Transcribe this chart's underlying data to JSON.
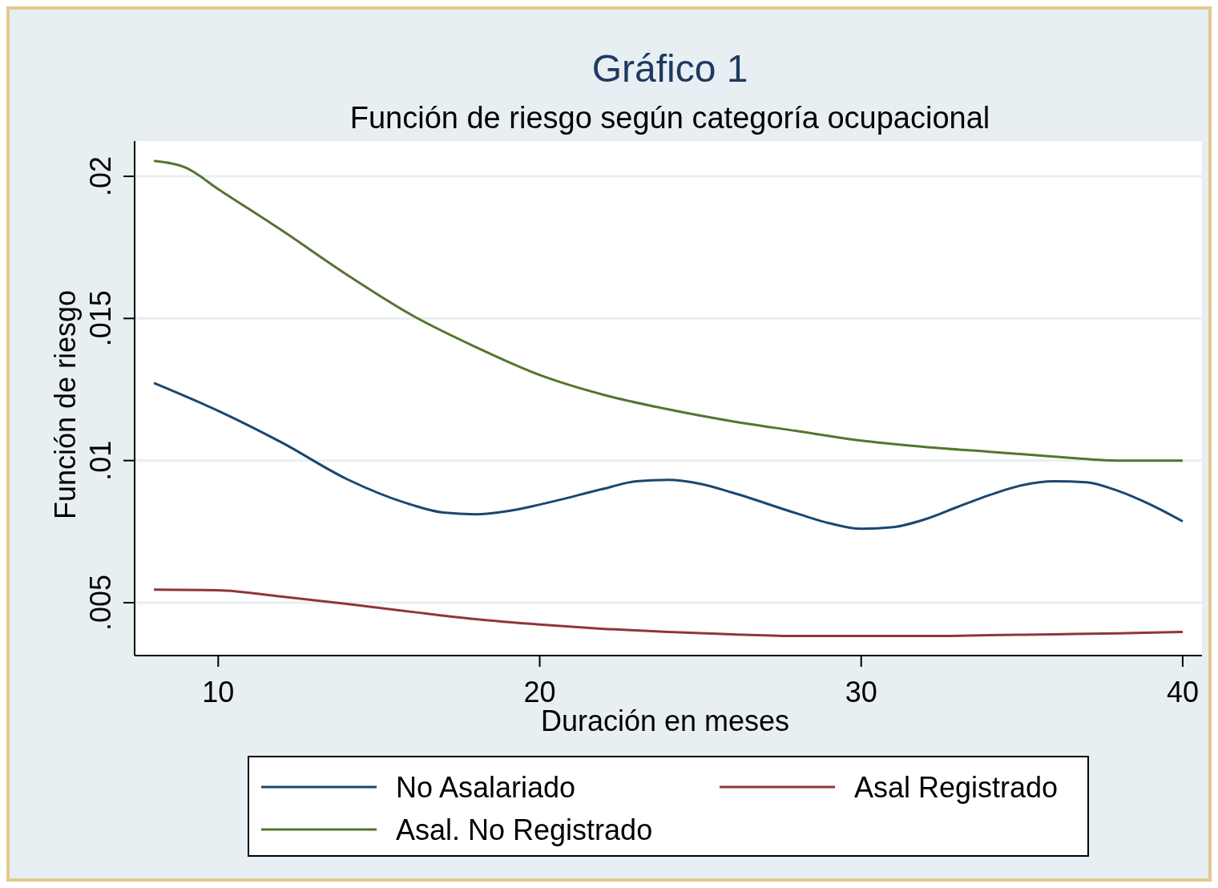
{
  "chart_data": {
    "type": "line",
    "title": "Gráfico 1",
    "subtitle": "Función de riesgo según categoría ocupacional",
    "xlabel": "Duración en meses",
    "ylabel": "Función de riesgo",
    "xlim": [
      7.4,
      40.6
    ],
    "xticks": [
      10,
      20,
      30,
      40
    ],
    "ylim": [
      0.00314,
      0.02124
    ],
    "yticks": [
      {
        "value": 0.005,
        "label": ".005"
      },
      {
        "value": 0.01,
        "label": ".01"
      },
      {
        "value": 0.015,
        "label": ".015"
      },
      {
        "value": 0.02,
        "label": ".02"
      }
    ],
    "grid": "y",
    "legend": "bottom",
    "line_style": "solid",
    "marker": "none",
    "series": [
      {
        "name": "No Asalariado",
        "color": "#1a476f",
        "x": [
          8,
          10,
          12,
          14,
          16,
          17,
          18,
          19,
          20,
          22,
          23,
          24,
          25,
          26,
          28,
          29,
          30,
          31,
          32,
          33,
          34,
          35,
          36,
          37,
          38,
          39,
          40
        ],
        "values": [
          0.01273,
          0.01175,
          0.01062,
          0.00935,
          0.00845,
          0.00817,
          0.00811,
          0.00822,
          0.00845,
          0.00901,
          0.00927,
          0.00932,
          0.00918,
          0.00887,
          0.00814,
          0.0078,
          0.0076,
          0.00766,
          0.00794,
          0.00837,
          0.00879,
          0.00913,
          0.00927,
          0.00924,
          0.00893,
          0.00845,
          0.00786
        ]
      },
      {
        "name": "Asal Registrado",
        "color": "#90353b",
        "x": [
          8,
          10,
          12,
          14,
          16,
          18,
          20,
          22,
          24,
          26,
          28,
          30,
          32,
          34,
          36,
          38,
          40
        ],
        "values": [
          0.00546,
          0.00544,
          0.00521,
          0.00496,
          0.00468,
          0.00442,
          0.00423,
          0.00408,
          0.00397,
          0.00389,
          0.00383,
          0.00383,
          0.00383,
          0.00386,
          0.00389,
          0.00392,
          0.00397
        ]
      },
      {
        "name": "Asal. No Registrado",
        "color": "#55752f",
        "x": [
          8,
          9,
          10,
          12,
          14,
          16,
          18,
          20,
          22,
          24,
          26,
          28,
          30,
          32,
          34,
          36,
          38,
          40
        ],
        "values": [
          0.02054,
          0.0203,
          0.01955,
          0.01808,
          0.01654,
          0.01513,
          0.014,
          0.01301,
          0.01231,
          0.0118,
          0.01138,
          0.01104,
          0.0107,
          0.01048,
          0.01031,
          0.01014,
          0.01,
          0.01
        ]
      }
    ]
  }
}
